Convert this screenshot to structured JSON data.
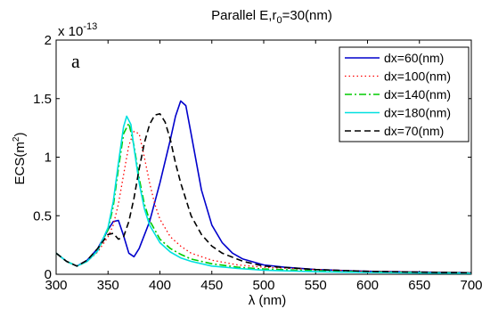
{
  "chart_data": {
    "type": "line",
    "title_main": "Parallel E,r",
    "title_sub": "0",
    "title_tail": "=30(nm)",
    "panel_label": "a",
    "exponent_base": "x 10",
    "exponent_power": "-13",
    "xlabel": "λ (nm)",
    "ylabel_main": "ECS(m",
    "ylabel_sup": "2",
    "ylabel_tail": ")",
    "xlim": [
      300,
      700
    ],
    "ylim": [
      0,
      2
    ],
    "xticks": [
      300,
      350,
      400,
      450,
      500,
      550,
      600,
      650,
      700
    ],
    "xtick_labels": [
      "300",
      "350",
      "400",
      "450",
      "500",
      "550",
      "600",
      "650",
      "700"
    ],
    "yticks": [
      0,
      0.5,
      1,
      1.5,
      2
    ],
    "ytick_labels": [
      "0",
      "0.5",
      "1",
      "1.5",
      "2"
    ],
    "legend_position": "top-right",
    "grid": false,
    "series": [
      {
        "name": "dx=60(nm)",
        "color": "#0000cc",
        "dash": "solid",
        "x": [
          300,
          310,
          320,
          330,
          340,
          350,
          355,
          360,
          365,
          370,
          375,
          380,
          390,
          400,
          410,
          415,
          420,
          425,
          430,
          440,
          450,
          460,
          470,
          480,
          500,
          520,
          550,
          600,
          650,
          700
        ],
        "y": [
          0.18,
          0.11,
          0.07,
          0.12,
          0.22,
          0.38,
          0.45,
          0.46,
          0.33,
          0.18,
          0.15,
          0.22,
          0.45,
          0.78,
          1.15,
          1.35,
          1.48,
          1.44,
          1.2,
          0.72,
          0.42,
          0.27,
          0.18,
          0.13,
          0.08,
          0.06,
          0.04,
          0.025,
          0.018,
          0.013
        ]
      },
      {
        "name": "dx=100(nm)",
        "color": "#ff0000",
        "dash": "dotted",
        "x": [
          300,
          310,
          320,
          330,
          340,
          350,
          355,
          360,
          365,
          370,
          375,
          380,
          385,
          390,
          395,
          400,
          410,
          420,
          430,
          450,
          475,
          500,
          550,
          600,
          650,
          700
        ],
        "y": [
          0.18,
          0.11,
          0.07,
          0.11,
          0.19,
          0.32,
          0.42,
          0.6,
          0.85,
          1.1,
          1.22,
          1.2,
          1.0,
          0.78,
          0.6,
          0.47,
          0.32,
          0.24,
          0.18,
          0.12,
          0.08,
          0.06,
          0.04,
          0.025,
          0.018,
          0.013
        ]
      },
      {
        "name": "dx=140(nm)",
        "color": "#00cc00",
        "dash": "dashdot",
        "x": [
          300,
          310,
          320,
          330,
          340,
          350,
          355,
          360,
          365,
          370,
          375,
          380,
          385,
          390,
          400,
          410,
          420,
          430,
          450,
          475,
          500,
          550,
          600,
          650,
          700
        ],
        "y": [
          0.18,
          0.11,
          0.07,
          0.11,
          0.2,
          0.38,
          0.58,
          0.9,
          1.2,
          1.29,
          1.1,
          0.82,
          0.6,
          0.46,
          0.3,
          0.22,
          0.17,
          0.13,
          0.09,
          0.06,
          0.045,
          0.03,
          0.02,
          0.015,
          0.011
        ]
      },
      {
        "name": "dx=180(nm)",
        "color": "#00e0e0",
        "dash": "solid",
        "x": [
          300,
          310,
          320,
          330,
          340,
          350,
          355,
          360,
          365,
          368,
          372,
          375,
          380,
          385,
          390,
          400,
          410,
          420,
          430,
          450,
          475,
          500,
          550,
          600,
          650,
          700
        ],
        "y": [
          0.18,
          0.11,
          0.07,
          0.11,
          0.2,
          0.4,
          0.62,
          0.95,
          1.26,
          1.35,
          1.28,
          1.08,
          0.78,
          0.56,
          0.42,
          0.27,
          0.19,
          0.14,
          0.11,
          0.07,
          0.05,
          0.035,
          0.022,
          0.015,
          0.011,
          0.008
        ]
      },
      {
        "name": "dx=70(nm)",
        "color": "#000000",
        "dash": "dashed",
        "x": [
          300,
          310,
          320,
          330,
          340,
          350,
          355,
          360,
          365,
          370,
          375,
          380,
          385,
          390,
          395,
          400,
          405,
          410,
          415,
          420,
          430,
          440,
          450,
          460,
          480,
          500,
          550,
          600,
          650,
          700
        ],
        "y": [
          0.18,
          0.11,
          0.07,
          0.12,
          0.22,
          0.34,
          0.35,
          0.3,
          0.32,
          0.45,
          0.65,
          0.9,
          1.12,
          1.28,
          1.36,
          1.37,
          1.3,
          1.15,
          0.95,
          0.78,
          0.5,
          0.34,
          0.24,
          0.18,
          0.11,
          0.07,
          0.04,
          0.025,
          0.018,
          0.013
        ]
      }
    ]
  }
}
